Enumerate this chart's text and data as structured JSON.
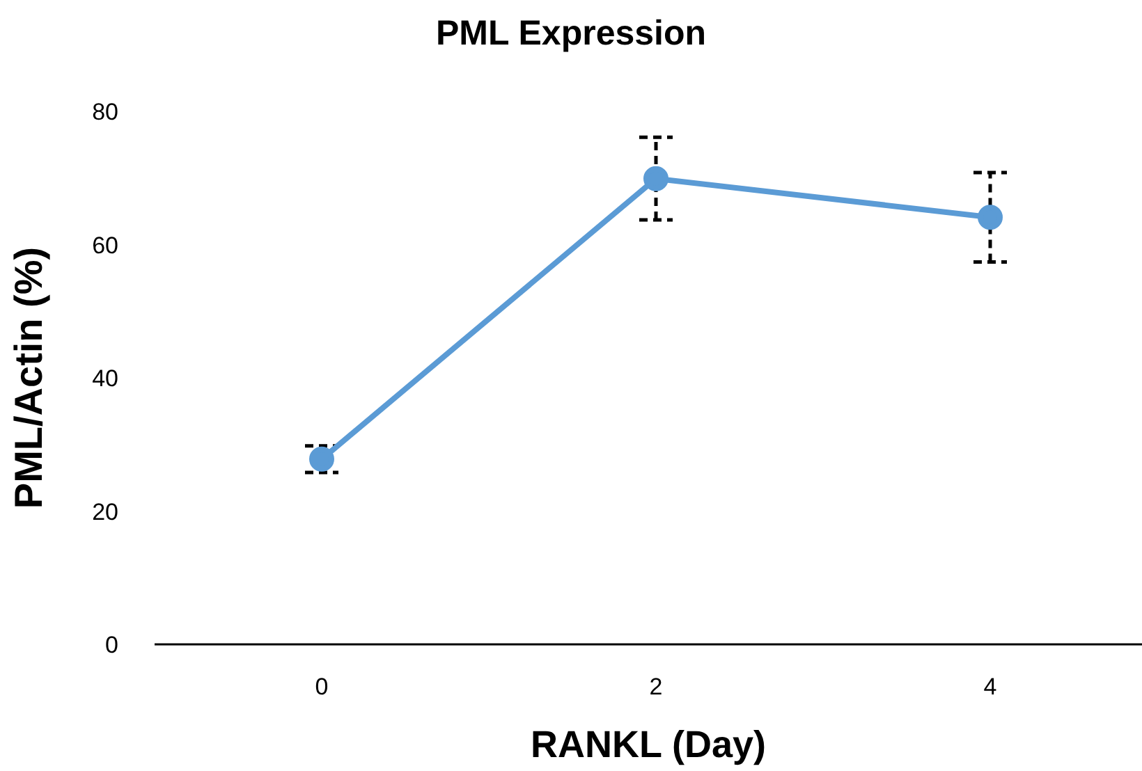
{
  "chart_data": {
    "type": "line",
    "title": "PML Expression",
    "xlabel": "RANKL (Day)",
    "ylabel": "PML/Actin (%)",
    "categories": [
      "0",
      "2",
      "4"
    ],
    "series": [
      {
        "color": "#5b9bd5",
        "values": [
          27.8,
          69.9,
          64.1
        ],
        "errors": [
          2,
          6.2,
          6.7
        ]
      }
    ],
    "ylim": [
      0,
      80
    ],
    "yticks": [
      0,
      20,
      40,
      60,
      80
    ],
    "grid": false,
    "legend": false,
    "marker": "circle",
    "line_style": "solid"
  }
}
